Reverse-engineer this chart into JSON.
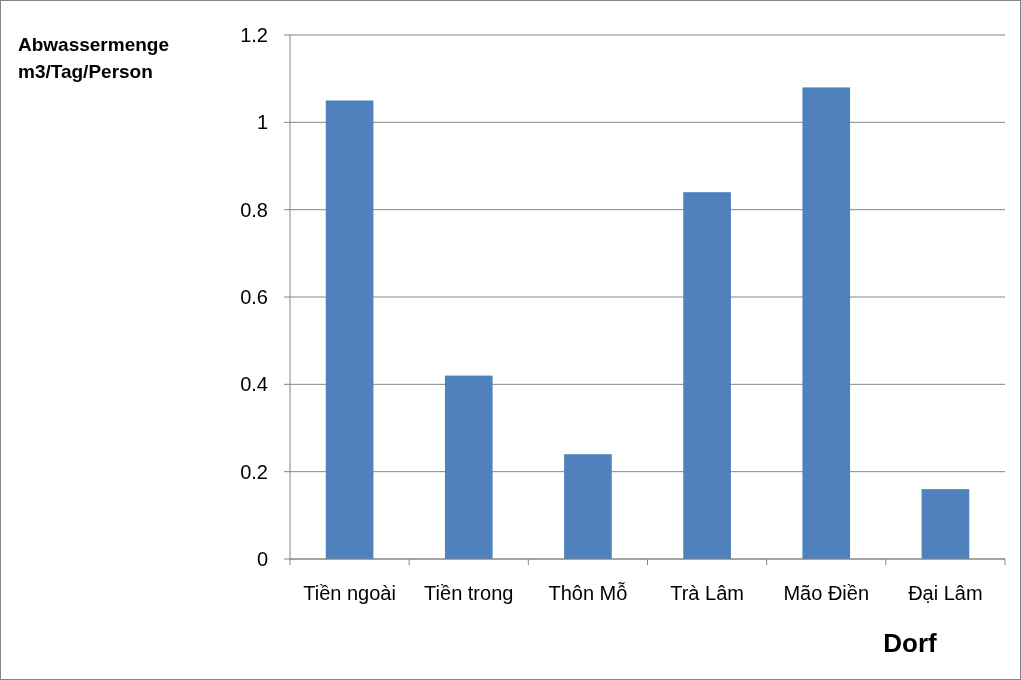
{
  "chart_data": {
    "type": "bar",
    "ylabel": "Abwassermenge\nm3/Tag/Person",
    "xlabel": "Dorf",
    "categories": [
      "Tiền ngoài",
      "Tiền trong",
      "Thôn Mỗ",
      "Trà Lâm",
      "Mão Điền",
      "Đại Lâm"
    ],
    "values": [
      1.05,
      0.42,
      0.24,
      0.84,
      1.08,
      0.16
    ],
    "color": "#4f81bd",
    "ylim": [
      0,
      1.2
    ],
    "yticks": [
      0,
      0.2,
      0.4,
      0.6,
      0.8,
      1,
      1.2
    ],
    "grid": "y"
  }
}
